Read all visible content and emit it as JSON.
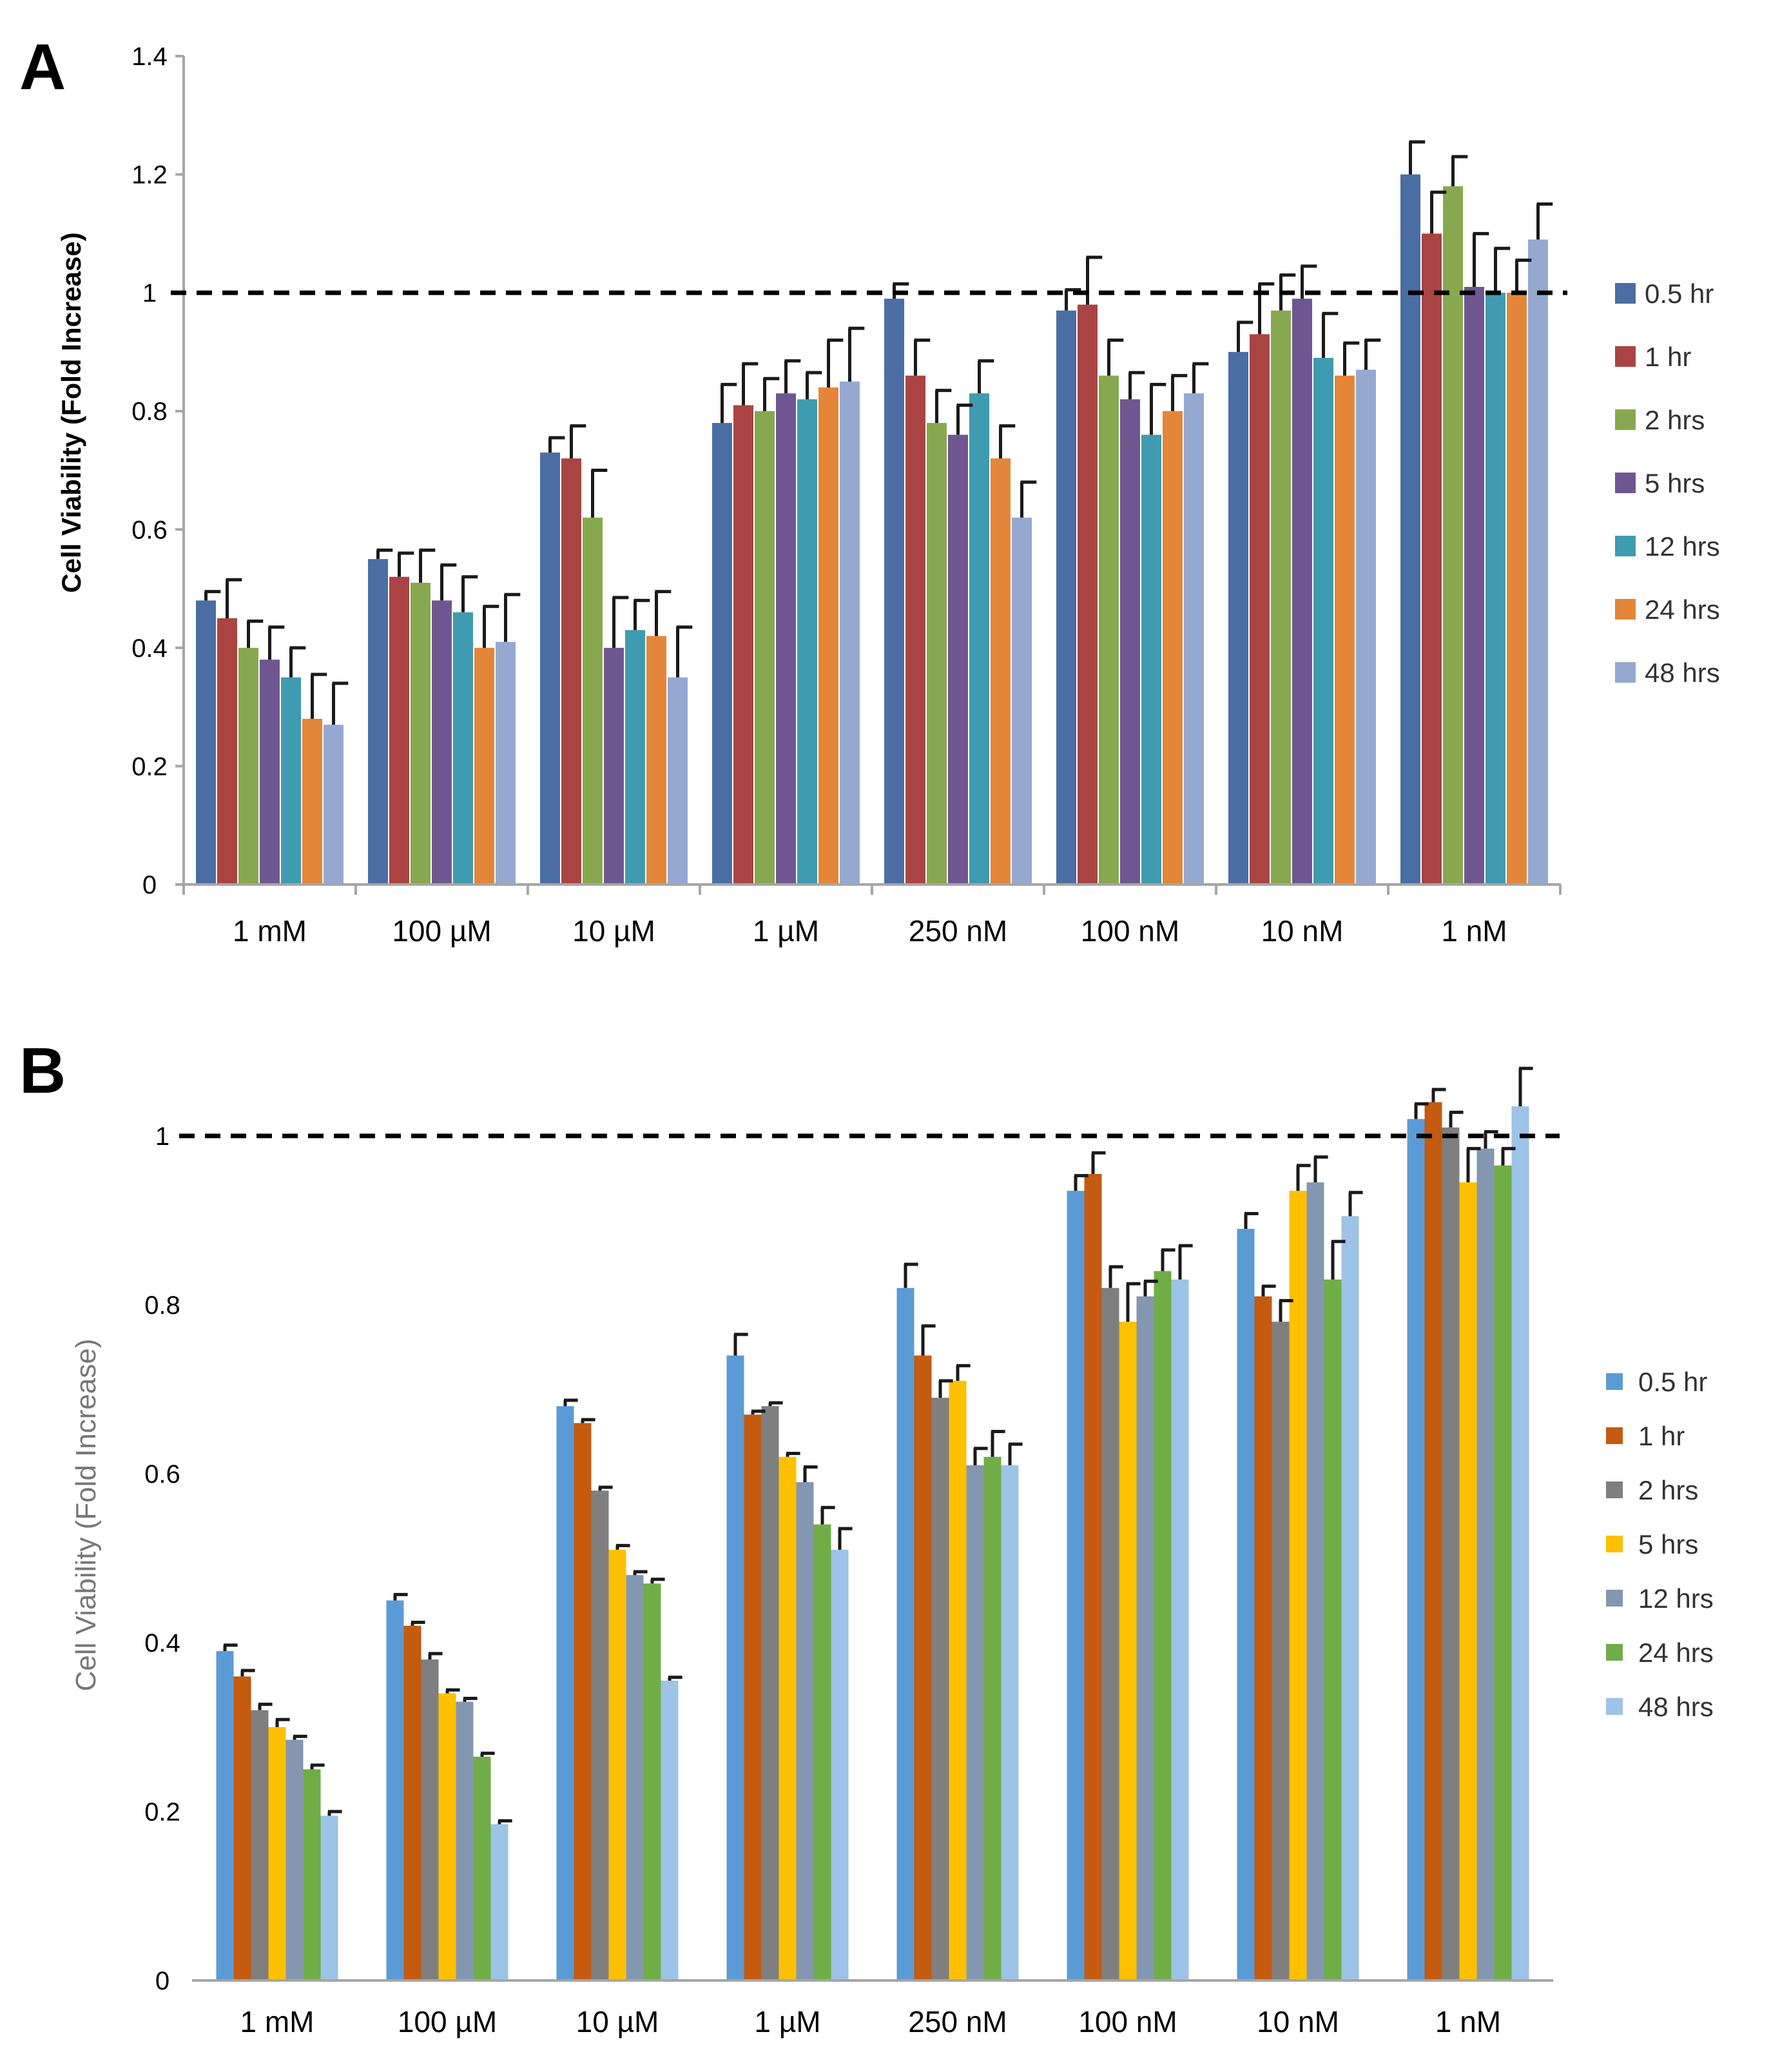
{
  "chart_data": [
    {
      "type": "bar",
      "panel": "A",
      "ylabel": "Cell Viability (Fold Increase)",
      "xlabel": "",
      "ylim": [
        0,
        1.4
      ],
      "yticks": [
        "0",
        "0.2",
        "0.4",
        "0.6",
        "0.8",
        "1",
        "1.2",
        "1.4"
      ],
      "reference_line": 1,
      "legend_position": "right",
      "categories": [
        "1 mM",
        "100 µM",
        "10 µM",
        "1 µM",
        "250 nM",
        "100 nM",
        "10 nM",
        "1 nM"
      ],
      "series": [
        {
          "name": "0.5 hr",
          "color": "#4a6ea3",
          "values": [
            0.48,
            0.55,
            0.73,
            0.78,
            0.99,
            0.97,
            0.9,
            1.2
          ],
          "errors": [
            0.015,
            0.015,
            0.025,
            0.065,
            0.025,
            0.035,
            0.05,
            0.055
          ]
        },
        {
          "name": "1 hr",
          "color": "#a94442",
          "values": [
            0.45,
            0.52,
            0.72,
            0.81,
            0.86,
            0.98,
            0.93,
            1.1
          ],
          "errors": [
            0.065,
            0.04,
            0.055,
            0.07,
            0.06,
            0.08,
            0.085,
            0.07
          ]
        },
        {
          "name": "2 hrs",
          "color": "#88a84f",
          "values": [
            0.4,
            0.51,
            0.62,
            0.8,
            0.78,
            0.86,
            0.97,
            1.18
          ],
          "errors": [
            0.045,
            0.055,
            0.08,
            0.055,
            0.055,
            0.06,
            0.06,
            0.05
          ]
        },
        {
          "name": "5 hrs",
          "color": "#6e5791",
          "values": [
            0.38,
            0.48,
            0.4,
            0.83,
            0.76,
            0.82,
            0.99,
            1.01
          ],
          "errors": [
            0.055,
            0.06,
            0.085,
            0.055,
            0.05,
            0.045,
            0.055,
            0.09
          ]
        },
        {
          "name": "12 hrs",
          "color": "#3e9bb0",
          "values": [
            0.35,
            0.46,
            0.43,
            0.82,
            0.83,
            0.76,
            0.89,
            1.0
          ],
          "errors": [
            0.05,
            0.06,
            0.05,
            0.045,
            0.055,
            0.085,
            0.075,
            0.075
          ]
        },
        {
          "name": "24 hrs",
          "color": "#e48639",
          "values": [
            0.28,
            0.4,
            0.42,
            0.84,
            0.72,
            0.8,
            0.86,
            1.0
          ],
          "errors": [
            0.075,
            0.07,
            0.075,
            0.08,
            0.055,
            0.06,
            0.055,
            0.055
          ]
        },
        {
          "name": "48 hrs",
          "color": "#95a9d0",
          "values": [
            0.27,
            0.41,
            0.35,
            0.85,
            0.62,
            0.83,
            0.87,
            1.09
          ],
          "errors": [
            0.07,
            0.08,
            0.085,
            0.09,
            0.06,
            0.05,
            0.05,
            0.06
          ]
        }
      ]
    },
    {
      "type": "bar",
      "panel": "B",
      "ylabel": "Cell Viability (Fold Increase)",
      "xlabel": "",
      "ylim": [
        0,
        1.0
      ],
      "yticks": [
        "0",
        "0.2",
        "0.4",
        "0.6",
        "0.8",
        "1"
      ],
      "reference_line": 1,
      "legend_position": "right",
      "categories": [
        "1 mM",
        "100 µM",
        "10 µM",
        "1 µM",
        "250 nM",
        "100 nM",
        "10 nM",
        "1 nM"
      ],
      "series": [
        {
          "name": "0.5 hr",
          "color": "#5b9bd5",
          "values": [
            0.39,
            0.45,
            0.68,
            0.74,
            0.82,
            0.935,
            0.89,
            1.02
          ],
          "errors": [
            0.007,
            0.007,
            0.007,
            0.025,
            0.028,
            0.018,
            0.018,
            0.018
          ]
        },
        {
          "name": "1 hr",
          "color": "#c55a11",
          "values": [
            0.36,
            0.42,
            0.66,
            0.67,
            0.74,
            0.955,
            0.81,
            1.04
          ],
          "errors": [
            0.007,
            0.004,
            0.004,
            0.004,
            0.035,
            0.025,
            0.012,
            0.015
          ]
        },
        {
          "name": "2 hrs",
          "color": "#7f7f7f",
          "values": [
            0.32,
            0.38,
            0.58,
            0.68,
            0.69,
            0.82,
            0.78,
            1.01
          ],
          "errors": [
            0.007,
            0.007,
            0.004,
            0.004,
            0.02,
            0.025,
            0.025,
            0.018
          ]
        },
        {
          "name": "5 hrs",
          "color": "#ffc000",
          "values": [
            0.3,
            0.34,
            0.51,
            0.62,
            0.71,
            0.78,
            0.935,
            0.945
          ],
          "errors": [
            0.009,
            0.004,
            0.005,
            0.004,
            0.018,
            0.045,
            0.03,
            0.04
          ]
        },
        {
          "name": "12 hrs",
          "color": "#8497b0",
          "values": [
            0.285,
            0.33,
            0.48,
            0.59,
            0.61,
            0.81,
            0.945,
            0.985
          ],
          "errors": [
            0.004,
            0.004,
            0.004,
            0.018,
            0.02,
            0.018,
            0.03,
            0.02
          ]
        },
        {
          "name": "24 hrs",
          "color": "#70ad47",
          "values": [
            0.25,
            0.265,
            0.47,
            0.54,
            0.62,
            0.84,
            0.83,
            0.965
          ],
          "errors": [
            0.005,
            0.004,
            0.005,
            0.02,
            0.03,
            0.025,
            0.045,
            0.02
          ]
        },
        {
          "name": "48 hrs",
          "color": "#9dc3e6",
          "values": [
            0.195,
            0.185,
            0.355,
            0.51,
            0.61,
            0.83,
            0.905,
            1.035
          ],
          "errors": [
            0.005,
            0.004,
            0.004,
            0.025,
            0.025,
            0.04,
            0.028,
            0.045
          ]
        }
      ]
    }
  ]
}
